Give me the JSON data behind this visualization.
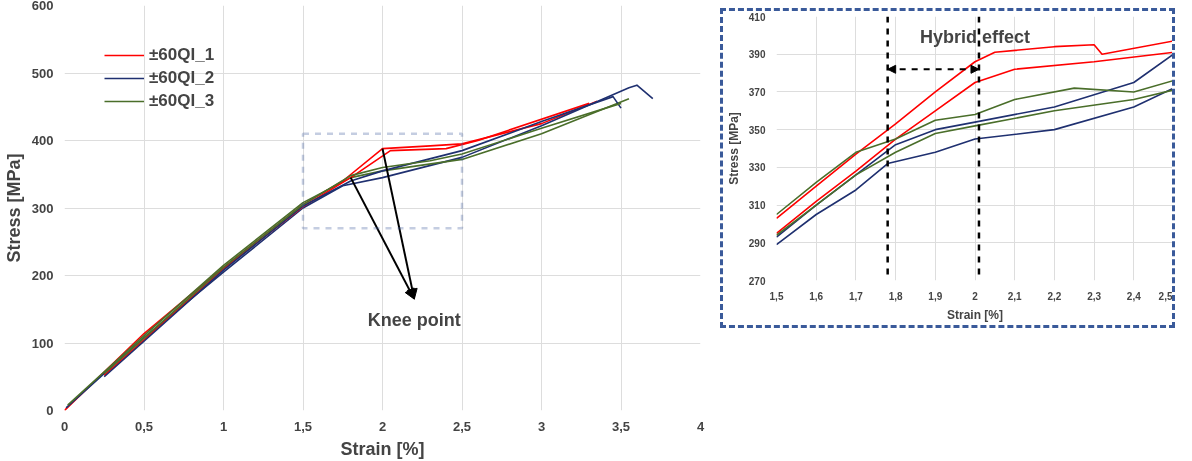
{
  "chart_data": [
    {
      "type": "line",
      "xlabel": "Strain [%]",
      "ylabel": "Stress [MPa]",
      "xlim": [
        0,
        4
      ],
      "ylim": [
        0,
        600
      ],
      "xticks": [
        0,
        {
          "value": 0.5,
          "label": "0,5"
        },
        1,
        {
          "value": 1.5,
          "label": "1,5"
        },
        2,
        {
          "value": 2.5,
          "label": "2,5"
        },
        3,
        {
          "value": 3.5,
          "label": "3,5"
        },
        4
      ],
      "yticks": [
        0,
        100,
        200,
        300,
        400,
        500,
        600
      ],
      "grid": true,
      "legend": "top left",
      "marker": "none",
      "line_style": "solid",
      "annotations": [
        {
          "text": "Knee point",
          "x": 2,
          "y": 388
        }
      ],
      "series": [
        {
          "name": "±60QI_1",
          "color": "#ff0000",
          "x": [
            0,
            0.5,
            1,
            1.5,
            1.75,
            2,
            2.3,
            2.5,
            3,
            3.35
          ],
          "values": [
            0,
            114,
            212,
            305,
            340,
            388,
            392,
            395,
            425,
            458
          ]
        },
        {
          "name": "±60QI_2",
          "color": "#1f3070",
          "x": [
            0.01,
            0.5,
            1,
            1.5,
            1.75,
            2,
            2.5,
            3,
            3.55,
            3.6,
            3.7
          ],
          "values": [
            4,
            108,
            205,
            300,
            333,
            345,
            375,
            422,
            478,
            482,
            462
          ]
        },
        {
          "name": "±60QI_3",
          "color": "#4a6e2a",
          "x": [
            0.02,
            0.5,
            1,
            1.5,
            1.8,
            2,
            2.5,
            3,
            3.55
          ],
          "values": [
            8,
            111,
            215,
            308,
            345,
            355,
            372,
            410,
            462
          ]
        },
        {
          "color": "#ff0000",
          "x": [
            0.25,
            1,
            1.5,
            1.8,
            2.05,
            2.4,
            2.6,
            3.3
          ],
          "values": [
            52,
            210,
            302,
            345,
            385,
            388,
            400,
            455
          ]
        },
        {
          "color": "#1f3070",
          "x": [
            0.25,
            1,
            1.5,
            1.8,
            2,
            2.5,
            3,
            3.45,
            3.5
          ],
          "values": [
            50,
            208,
            303,
            340,
            355,
            385,
            428,
            465,
            448
          ]
        },
        {
          "color": "#4a6e2a",
          "x": [
            0.25,
            1,
            1.5,
            1.8,
            2,
            2.3,
            2.5,
            3,
            3.5
          ],
          "values": [
            55,
            212,
            305,
            348,
            360,
            370,
            380,
            418,
            455
          ]
        }
      ]
    },
    {
      "type": "line",
      "xlabel": "Strain [%]",
      "ylabel": "Stress [MPa]",
      "xlim": [
        1.5,
        2.5
      ],
      "ylim": [
        270,
        410
      ],
      "xticks": [
        {
          "value": 1.5,
          "label": "1,5"
        },
        {
          "value": 1.6,
          "label": "1,6"
        },
        {
          "value": 1.7,
          "label": "1,7"
        },
        {
          "value": 1.8,
          "label": "1,8"
        },
        {
          "value": 1.9,
          "label": "1,9"
        },
        2,
        {
          "value": 2.1,
          "label": "2,1"
        },
        {
          "value": 2.2,
          "label": "2,2"
        },
        {
          "value": 2.3,
          "label": "2,3"
        },
        {
          "value": 2.4,
          "label": "2,4"
        },
        {
          "value": 2.5,
          "label": "2,5"
        }
      ],
      "yticks": [
        270,
        290,
        310,
        330,
        350,
        370,
        390,
        410
      ],
      "grid": true,
      "marker": "none",
      "line_style": "solid",
      "annotations": [
        "Hybrid effect"
      ],
      "ref_lines": [
        {
          "axis": "x",
          "value": 1.78,
          "color": "#000000",
          "line_style": "dashed"
        },
        {
          "axis": "x",
          "value": 2.01,
          "color": "#000000",
          "line_style": "dashed"
        }
      ],
      "series": [
        {
          "color": "#ff0000",
          "x": [
            1.5,
            1.6,
            1.7,
            1.8,
            1.9,
            2.0,
            2.05,
            2.2,
            2.3,
            2.32,
            2.5
          ],
          "values": [
            303,
            320,
            337,
            353,
            370,
            386,
            391,
            394,
            395,
            390,
            397
          ]
        },
        {
          "color": "#ff0000",
          "x": [
            1.5,
            1.6,
            1.7,
            1.8,
            1.9,
            2.0,
            2.1,
            2.3,
            2.5
          ],
          "values": [
            295,
            312,
            328,
            345,
            360,
            375,
            382,
            386,
            391
          ]
        },
        {
          "color": "#1f3070",
          "x": [
            1.5,
            1.6,
            1.7,
            1.78,
            1.9,
            2.0,
            2.2,
            2.4,
            2.5
          ],
          "values": [
            289,
            305,
            318,
            332,
            338,
            345,
            350,
            362,
            372
          ]
        },
        {
          "color": "#1f3070",
          "x": [
            1.5,
            1.6,
            1.7,
            1.8,
            1.9,
            2.0,
            2.2,
            2.4,
            2.5
          ],
          "values": [
            293,
            310,
            326,
            342,
            350,
            354,
            362,
            375,
            390
          ]
        },
        {
          "color": "#4a6e2a",
          "x": [
            1.5,
            1.6,
            1.7,
            1.8,
            1.9,
            2.0,
            2.1,
            2.25,
            2.4,
            2.5
          ],
          "values": [
            305,
            322,
            338,
            345,
            355,
            358,
            366,
            372,
            370,
            376
          ]
        },
        {
          "color": "#4a6e2a",
          "x": [
            1.5,
            1.6,
            1.7,
            1.8,
            1.9,
            2.0,
            2.2,
            2.4,
            2.5
          ],
          "values": [
            294,
            310,
            326,
            338,
            348,
            352,
            360,
            366,
            371
          ]
        }
      ]
    }
  ]
}
